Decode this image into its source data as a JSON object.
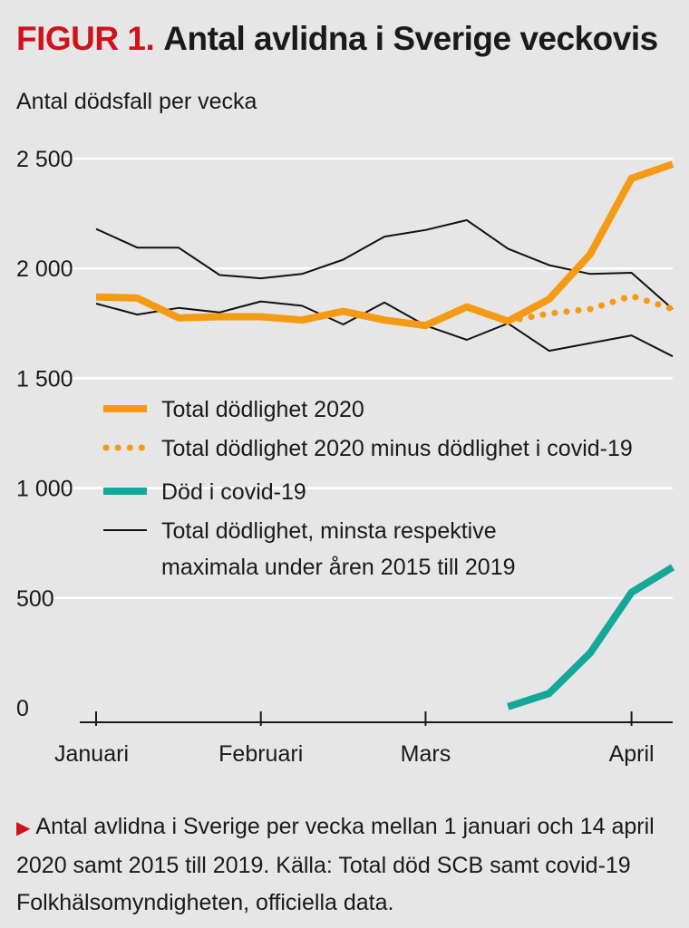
{
  "header": {
    "figure_label": "FIGUR 1.",
    "title": "Antal avlidna i Sverige veckovis",
    "subtitle": "Antal dödsfall per vecka"
  },
  "chart_data": {
    "type": "line",
    "title": "Antal avlidna i Sverige veckovis",
    "ylabel": "Antal dödsfall per vecka",
    "ylim": [
      0,
      2500
    ],
    "y_ticks": [
      0,
      500,
      1000,
      1500,
      2000,
      2500
    ],
    "y_tick_labels": [
      "0",
      "500",
      "1 000",
      "1 500",
      "2 000",
      "2 500"
    ],
    "grid": "horizontal",
    "x_ticks": [
      1,
      5,
      9,
      14
    ],
    "x_tick_labels": [
      "Januari",
      "Februari",
      "Mars",
      "April"
    ],
    "xlim": [
      1,
      15
    ],
    "legend_position": "middle-left",
    "series": [
      {
        "name": "Total dödlighet 2020",
        "style": "thick-solid",
        "color": "#f59a14",
        "x": [
          1,
          2,
          3,
          4,
          5,
          6,
          7,
          8,
          9,
          10,
          11,
          12,
          13,
          14,
          15
        ],
        "values": [
          1870,
          1865,
          1775,
          1780,
          1780,
          1765,
          1805,
          1765,
          1740,
          1825,
          1760,
          1860,
          2065,
          2410,
          2475
        ]
      },
      {
        "name": "Total dödlighet 2020 minus dödlighet i covid-19",
        "style": "dotted",
        "color": "#f59a14",
        "x": [
          11,
          12,
          13,
          14,
          15
        ],
        "values": [
          1760,
          1795,
          1815,
          1875,
          1815
        ]
      },
      {
        "name": "Död i covid-19",
        "style": "thick-solid",
        "color": "#14a89a",
        "x": [
          11,
          12,
          13,
          14,
          15
        ],
        "values": [
          5,
          65,
          250,
          525,
          640
        ]
      },
      {
        "name": "Total dödlighet, minsta respektive maximala under åren 2015 till 2019",
        "style": "thin-solid",
        "color": "#111111",
        "x": [
          1,
          2,
          3,
          4,
          5,
          6,
          7,
          8,
          9,
          10,
          11,
          12,
          13,
          14,
          15
        ],
        "values": [
          2180,
          2095,
          2095,
          1970,
          1955,
          1975,
          2040,
          2145,
          2175,
          2220,
          2090,
          2015,
          1975,
          1980,
          1815
        ]
      },
      {
        "name": "",
        "style": "thin-solid",
        "color": "#111111",
        "x": [
          1,
          2,
          3,
          4,
          5,
          6,
          7,
          8,
          9,
          10,
          11,
          12,
          13,
          14,
          15
        ],
        "values": [
          1840,
          1790,
          1820,
          1800,
          1850,
          1830,
          1745,
          1845,
          1740,
          1675,
          1750,
          1625,
          1660,
          1695,
          1600
        ]
      }
    ],
    "legend": [
      {
        "label": "Total dödlighet 2020",
        "style": "thick-solid",
        "color": "#f59a14"
      },
      {
        "label": "Total dödlighet 2020 minus dödlighet i covid-19",
        "style": "dotted",
        "color": "#f59a14"
      },
      {
        "label": "Död i covid-19",
        "style": "thick-solid",
        "color": "#14a89a"
      },
      {
        "label": "Total dödlighet, minsta respektive maximala under åren 2015 till 2019",
        "label_lines": [
          "Total dödlighet, minsta respektive",
          "maximala under åren 2015 till 2019"
        ],
        "style": "thin-solid",
        "color": "#111111"
      }
    ]
  },
  "caption": {
    "text": "Antal avlidna i Sverige per vecka mellan 1 januari och 14 april 2020 samt 2015 till 2019. Källa: Total död SCB samt covid-19 Folkhälsomyndigheten, officiella data."
  }
}
